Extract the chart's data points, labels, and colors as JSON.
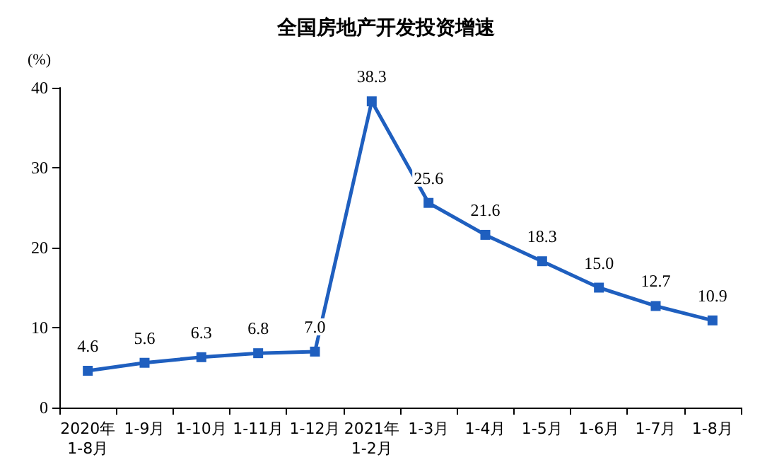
{
  "chart_data": {
    "type": "line",
    "title": "全国房地产开发投资增速",
    "ylabel": "(%)",
    "categories": [
      "2020年\n1-8月",
      "1-9月",
      "1-10月",
      "1-11月",
      "1-12月",
      "2021年\n1-2月",
      "1-3月",
      "1-4月",
      "1-5月",
      "1-6月",
      "1-7月",
      "1-8月"
    ],
    "series": [
      {
        "color": "#1f5fbf",
        "values": [
          4.6,
          5.6,
          6.3,
          6.8,
          7.0,
          38.3,
          25.6,
          21.6,
          18.3,
          15.0,
          12.7,
          10.9
        ],
        "value_labels": [
          "4.6",
          "5.6",
          "6.3",
          "6.8",
          "7.0",
          "38.3",
          "25.6",
          "21.6",
          "18.3",
          "15.0",
          "12.7",
          "10.9"
        ]
      }
    ],
    "ylim": [
      0,
      40
    ],
    "yticks": [
      0,
      10,
      20,
      30,
      40
    ],
    "grid": false,
    "marker": "square",
    "line_style": "solid"
  }
}
